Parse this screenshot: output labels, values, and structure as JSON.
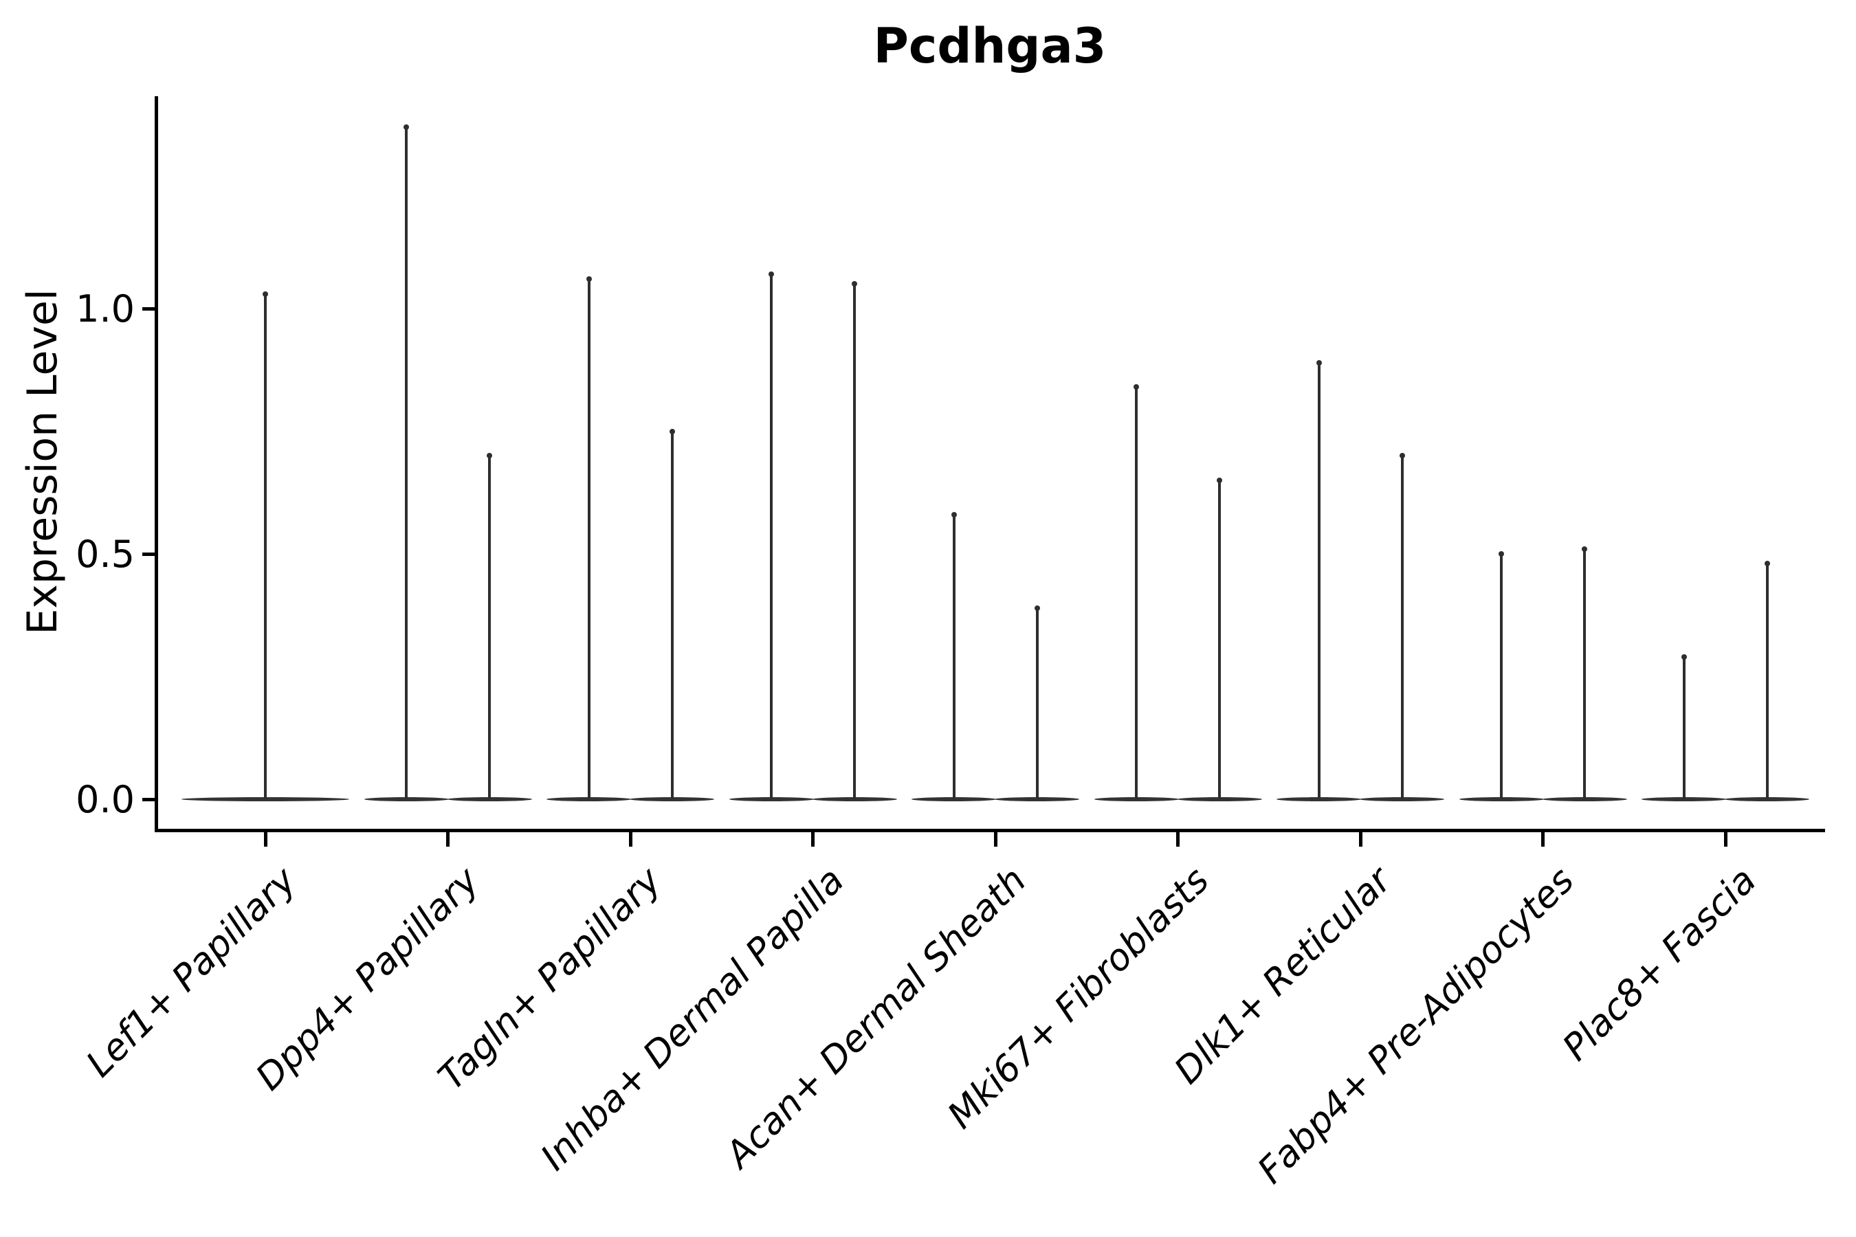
{
  "title": "Pcdhga3",
  "axes": {
    "y_label": "Expression Level",
    "y_ticks": [
      {
        "value": 0.0,
        "label": "0.0"
      },
      {
        "value": 0.5,
        "label": "0.5"
      },
      {
        "value": 1.0,
        "label": "1.0"
      }
    ]
  },
  "chart_data": {
    "type": "violin",
    "title": "Pcdhga3",
    "xlabel": "",
    "ylabel": "Expression Level",
    "ylim": [
      -0.06,
      1.43
    ],
    "grid": false,
    "legend": "none",
    "y_tick_values": [
      0.0,
      0.5,
      1.0
    ],
    "categories": [
      "Lef1+ Papillary",
      "Dpp4+ Papillary",
      "Tagln+ Papillary",
      "Inhba+ Dermal Papilla",
      "Acan+ Dermal Sheath",
      "Mki67+ Fibroblasts",
      "Dlk1+ Reticular",
      "Fabp4+ Pre-Adipocytes",
      "Plac8+ Fascia"
    ],
    "violins": [
      {
        "category": "Lef1+ Papillary",
        "spike_maxima": [
          1.03
        ]
      },
      {
        "category": "Dpp4+ Papillary",
        "spike_maxima": [
          1.37,
          0.7
        ]
      },
      {
        "category": "Tagln+ Papillary",
        "spike_maxima": [
          1.06,
          0.75
        ]
      },
      {
        "category": "Inhba+ Dermal Papilla",
        "spike_maxima": [
          1.07,
          1.05
        ]
      },
      {
        "category": "Acan+ Dermal Sheath",
        "spike_maxima": [
          0.58,
          0.39
        ]
      },
      {
        "category": "Mki67+ Fibroblasts",
        "spike_maxima": [
          0.84,
          0.65
        ]
      },
      {
        "category": "Dlk1+ Reticular",
        "spike_maxima": [
          0.89,
          0.7
        ]
      },
      {
        "category": "Fabp4+ Pre-Adipocytes",
        "spike_maxima": [
          0.5,
          0.51
        ]
      },
      {
        "category": "Plac8+ Fascia",
        "spike_maxima": [
          0.29,
          0.48
        ]
      }
    ],
    "baseline_value": 0.0,
    "colors": {
      "violin": "#2e2e2e",
      "axis": "#000000",
      "text": "#000000",
      "background": "#ffffff"
    }
  }
}
